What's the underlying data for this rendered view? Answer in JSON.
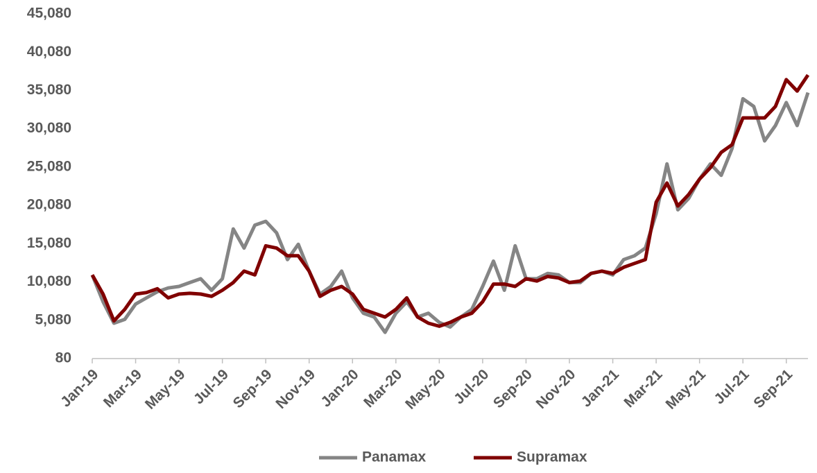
{
  "chart_data": {
    "type": "line",
    "categories": [
      "Jan-19",
      null,
      null,
      null,
      "Mar-19",
      null,
      null,
      null,
      "May-19",
      null,
      null,
      null,
      "Jul-19",
      null,
      null,
      null,
      "Sep-19",
      null,
      null,
      null,
      "Nov-19",
      null,
      null,
      null,
      "Jan-20",
      null,
      null,
      null,
      "Mar-20",
      null,
      null,
      null,
      "May-20",
      null,
      null,
      null,
      "Jul-20",
      null,
      null,
      null,
      "Sep-20",
      null,
      null,
      null,
      "Nov-20",
      null,
      null,
      null,
      "Jan-21",
      null,
      null,
      null,
      "Mar-21",
      null,
      null,
      null,
      "May-21",
      null,
      null,
      null,
      "Jul-21",
      null,
      null,
      null,
      "Sep-21",
      null,
      null
    ],
    "series": [
      {
        "name": "Panamax",
        "color": "#858585",
        "values": [
          11000,
          7500,
          4700,
          5200,
          7200,
          8000,
          8800,
          9300,
          9500,
          10000,
          10500,
          9000,
          10500,
          17000,
          14500,
          17500,
          18000,
          16500,
          13000,
          15000,
          11500,
          8500,
          9500,
          11500,
          8000,
          6000,
          5500,
          3500,
          6000,
          7500,
          5500,
          6000,
          4800,
          4200,
          5500,
          6500,
          9500,
          12800,
          9000,
          14800,
          10500,
          10500,
          11200,
          11000,
          10000,
          10000,
          11200,
          11500,
          11000,
          13000,
          13500,
          14500,
          19000,
          25500,
          19500,
          21000,
          23500,
          25500,
          24000,
          27500,
          34000,
          33000,
          28500,
          30500,
          33500,
          30500,
          34800
        ]
      },
      {
        "name": "Supramax",
        "color": "#800000",
        "values": [
          11000,
          8500,
          5000,
          6500,
          8500,
          8700,
          9200,
          8000,
          8500,
          8600,
          8500,
          8200,
          9000,
          10000,
          11500,
          11000,
          14800,
          14500,
          13500,
          13500,
          11500,
          8200,
          9000,
          9500,
          8500,
          6500,
          6000,
          5500,
          6500,
          8000,
          5500,
          4700,
          4300,
          4800,
          5500,
          6000,
          7500,
          9800,
          9800,
          9500,
          10500,
          10200,
          10800,
          10600,
          10000,
          10200,
          11200,
          11500,
          11200,
          12000,
          12500,
          13000,
          20500,
          23000,
          20000,
          21500,
          23500,
          25000,
          27000,
          28000,
          31500,
          31500,
          31500,
          33000,
          36500,
          35000,
          37100
        ]
      }
    ],
    "ylim": [
      80,
      45080
    ],
    "yticks": [
      80,
      {
        "value": 5080,
        "label": "5,080"
      },
      {
        "value": 10080,
        "label": "10,080"
      },
      {
        "value": 15080,
        "label": "15,080"
      },
      {
        "value": 20080,
        "label": "20,080"
      },
      {
        "value": 25080,
        "label": "25,080"
      },
      {
        "value": 30080,
        "label": "30,080"
      },
      {
        "value": 35080,
        "label": "35,080"
      },
      {
        "value": 40080,
        "label": "40,080"
      },
      {
        "value": 45080,
        "label": "45,080"
      }
    ],
    "grid": false,
    "legend": "bottom"
  }
}
